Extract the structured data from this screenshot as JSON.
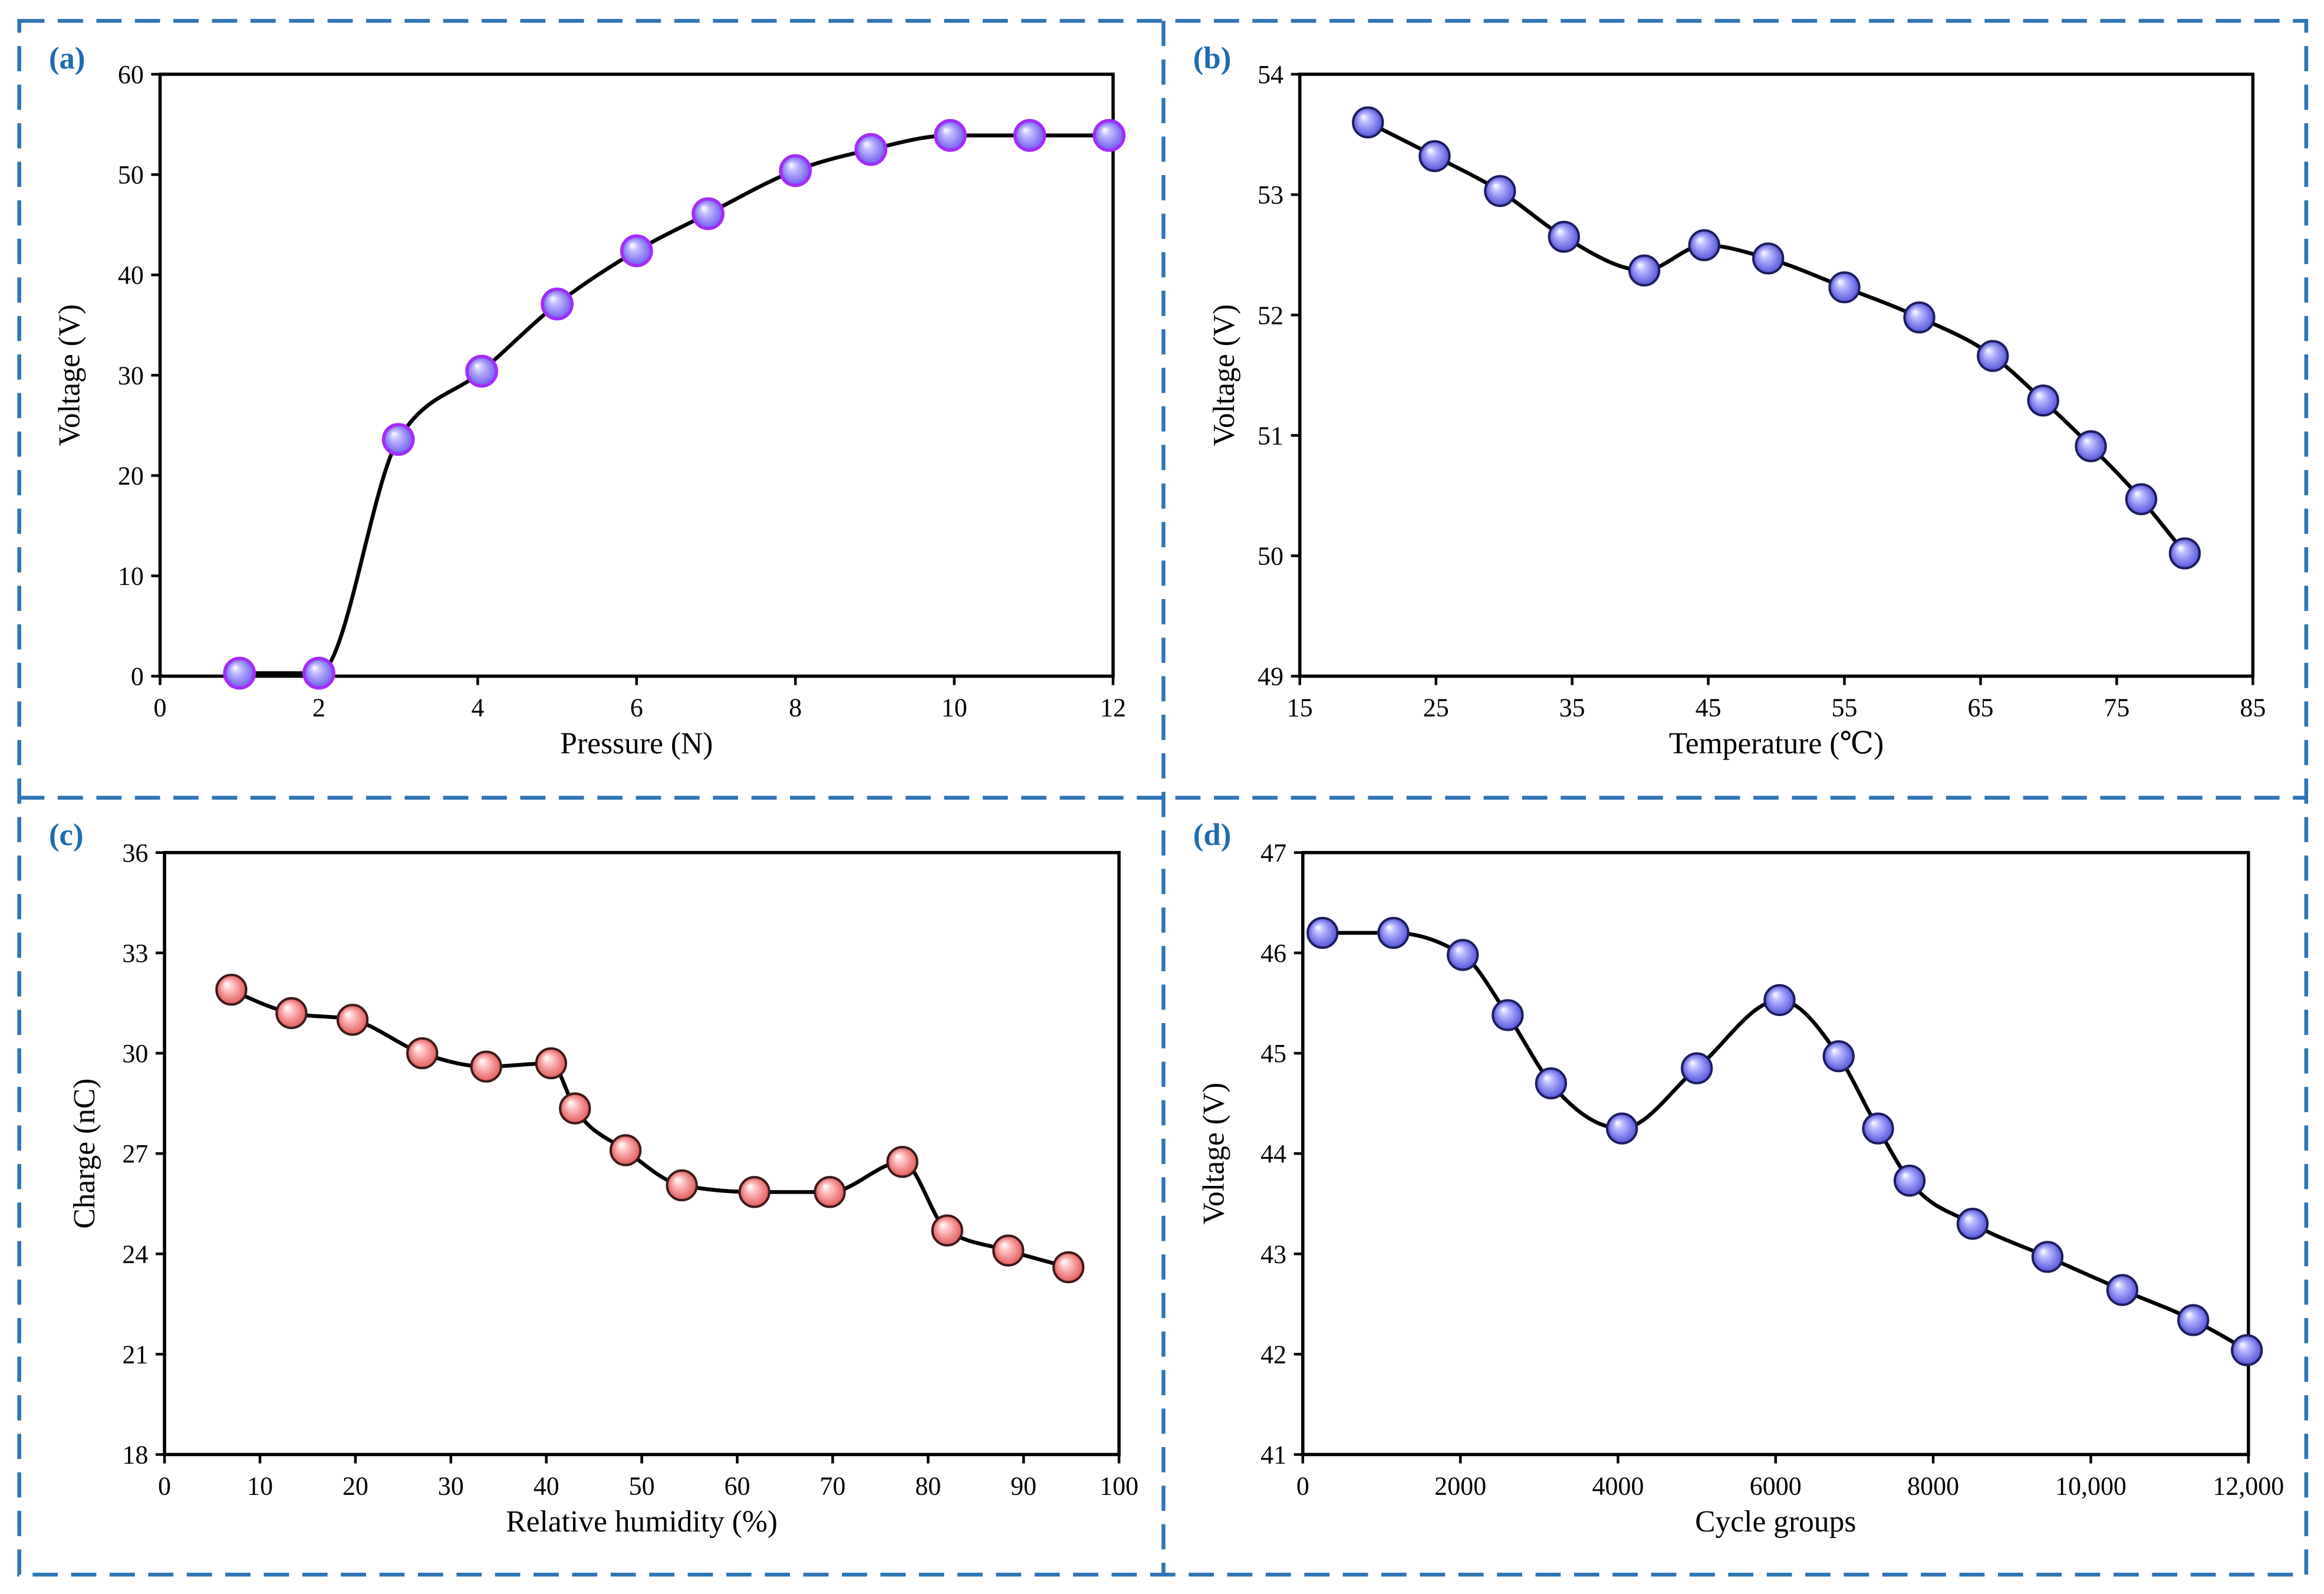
{
  "colors": {
    "panel_border": "#2e75b6",
    "panel_label": "#1f6bb0",
    "axis": "#000000",
    "line": "#000000"
  },
  "chart_data": [
    {
      "panel_label": "(a)",
      "type": "line",
      "xlabel": "Pressure (N)",
      "ylabel": "Voltage (V)",
      "xlim": [
        0,
        12
      ],
      "ylim": [
        0,
        60
      ],
      "x_ticks": [
        0,
        2,
        4,
        6,
        8,
        10,
        12
      ],
      "x_tick_labels": [
        "0",
        "2",
        "4",
        "6",
        "8",
        "10",
        "12"
      ],
      "y_ticks": [
        0,
        10,
        20,
        30,
        40,
        50,
        60
      ],
      "y_tick_labels": [
        "0",
        "10",
        "20",
        "30",
        "40",
        "50",
        "60"
      ],
      "grid": false,
      "legend": "none",
      "marker": {
        "highlight": "#ffffff",
        "mid": "#c2bbff",
        "base": "#6f5cf0",
        "edge": "#a52cf8"
      },
      "series": [
        {
          "x": [
            1,
            2,
            3,
            4.05,
            5,
            6,
            6.9,
            8,
            8.95,
            9.95,
            10.95,
            11.95
          ],
          "y": [
            0.3,
            0.3,
            23.6,
            30.4,
            37.1,
            42.4,
            46.1,
            50.4,
            52.5,
            53.9,
            53.9,
            53.9
          ]
        }
      ]
    },
    {
      "panel_label": "(b)",
      "type": "line",
      "xlabel": "Temperature (℃)",
      "ylabel": "Voltage (V)",
      "xlim": [
        15,
        85
      ],
      "ylim": [
        49,
        54
      ],
      "x_ticks": [
        15,
        25,
        35,
        45,
        55,
        65,
        75,
        85
      ],
      "x_tick_labels": [
        "15",
        "25",
        "35",
        "45",
        "55",
        "65",
        "75",
        "85"
      ],
      "y_ticks": [
        49,
        50,
        51,
        52,
        53,
        54
      ],
      "y_tick_labels": [
        "49",
        "50",
        "51",
        "52",
        "53",
        "54"
      ],
      "grid": false,
      "legend": "none",
      "marker": {
        "highlight": "#ffffff",
        "mid": "#babaff",
        "base": "#5454dc",
        "edge": "#1d1d5c"
      },
      "series": [
        {
          "x": [
            20,
            24.9,
            29.7,
            34.4,
            40.3,
            44.7,
            49.4,
            55,
            60.5,
            65.9,
            69.6,
            73.1,
            76.8,
            80
          ],
          "y": [
            53.6,
            53.32,
            53.03,
            52.65,
            52.37,
            52.58,
            52.47,
            52.23,
            51.98,
            51.66,
            51.29,
            50.91,
            50.47,
            50.02
          ]
        }
      ]
    },
    {
      "panel_label": "(c)",
      "type": "line",
      "xlabel": "Relative humidity (%)",
      "ylabel": "Charge (nC)",
      "xlim": [
        0,
        100
      ],
      "ylim": [
        18,
        36
      ],
      "x_ticks": [
        0,
        10,
        20,
        30,
        40,
        50,
        60,
        70,
        80,
        90,
        100
      ],
      "x_tick_labels": [
        "0",
        "10",
        "20",
        "30",
        "40",
        "50",
        "60",
        "70",
        "80",
        "90",
        "100"
      ],
      "y_ticks": [
        18,
        21,
        24,
        27,
        30,
        33,
        36
      ],
      "y_tick_labels": [
        "18",
        "21",
        "24",
        "27",
        "30",
        "33",
        "36"
      ],
      "grid": false,
      "legend": "none",
      "marker": {
        "highlight": "#ffffff",
        "mid": "#ffc4c4",
        "base": "#e35a5a",
        "edge": "#3b1a1a"
      },
      "series": [
        {
          "x": [
            7,
            13.3,
            19.7,
            27,
            33.7,
            40.5,
            43,
            48.3,
            54.2,
            61.8,
            69.7,
            77.3,
            82,
            88.4,
            94.7
          ],
          "y": [
            31.9,
            31.2,
            31,
            30,
            29.6,
            29.7,
            28.35,
            27.1,
            26.05,
            25.85,
            25.85,
            26.75,
            24.7,
            24.1,
            23.6
          ]
        }
      ]
    },
    {
      "panel_label": "(d)",
      "type": "line",
      "xlabel": "Cycle groups",
      "ylabel": "Voltage (V)",
      "xlim": [
        0,
        12000
      ],
      "ylim": [
        41,
        47
      ],
      "x_ticks": [
        0,
        2000,
        4000,
        6000,
        8000,
        10000,
        12000
      ],
      "x_tick_labels": [
        "0",
        "2000",
        "4000",
        "6000",
        "8000",
        "10,000",
        "12,000"
      ],
      "y_ticks": [
        41,
        42,
        43,
        44,
        45,
        46,
        47
      ],
      "y_tick_labels": [
        "41",
        "42",
        "43",
        "44",
        "45",
        "46",
        "47"
      ],
      "grid": false,
      "legend": "none",
      "marker": {
        "highlight": "#ffffff",
        "mid": "#babaff",
        "base": "#5454dc",
        "edge": "#1d1d5c"
      },
      "series": [
        {
          "x": [
            250,
            1150,
            2030,
            2600,
            3150,
            4050,
            5000,
            6050,
            6800,
            7300,
            7700,
            8500,
            9450,
            10400,
            11300,
            11980
          ],
          "y": [
            46.2,
            46.2,
            45.98,
            45.38,
            44.7,
            44.25,
            44.85,
            45.53,
            44.97,
            44.25,
            43.73,
            43.3,
            42.97,
            42.64,
            42.34,
            42.04
          ]
        }
      ]
    }
  ]
}
